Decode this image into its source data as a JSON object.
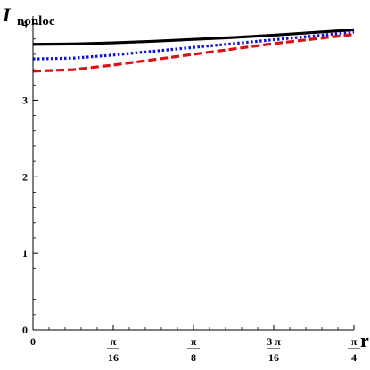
{
  "chart_data": {
    "type": "line",
    "title": "",
    "ylabel": {
      "main": "I",
      "sub": "nonloc"
    },
    "xlabel": "r",
    "xlim": [
      0,
      0.7853981634
    ],
    "ylim": [
      0,
      4.1
    ],
    "grid": false,
    "x_ticks": [
      {
        "value": 0,
        "numerator": "0",
        "denominator": ""
      },
      {
        "value": 0.1963495408,
        "numerator": "π",
        "denominator": "16"
      },
      {
        "value": 0.3926990817,
        "numerator": "π",
        "denominator": "8"
      },
      {
        "value": 0.5890486225,
        "numerator": "3 π",
        "denominator": "16"
      },
      {
        "value": 0.7853981634,
        "numerator": "π",
        "denominator": "4"
      }
    ],
    "y_ticks": [
      {
        "value": 0,
        "label": "0"
      },
      {
        "value": 1,
        "label": "1"
      },
      {
        "value": 2,
        "label": "2"
      },
      {
        "value": 3,
        "label": "3"
      },
      {
        "value": 4,
        "label": "4"
      }
    ],
    "series": [
      {
        "color": "#000000",
        "style": "solid",
        "x": [
          0,
          0.0982,
          0.1963,
          0.2945,
          0.3927,
          0.4909,
          0.589,
          0.6872,
          0.7854
        ],
        "y": [
          3.73,
          3.735,
          3.75,
          3.77,
          3.795,
          3.82,
          3.85,
          3.885,
          3.92
        ]
      },
      {
        "color": "#1010dd",
        "style": "dotted",
        "x": [
          0,
          0.0982,
          0.1963,
          0.2945,
          0.3927,
          0.4909,
          0.589,
          0.6872,
          0.7854
        ],
        "y": [
          3.54,
          3.55,
          3.59,
          3.64,
          3.69,
          3.74,
          3.79,
          3.84,
          3.89
        ]
      },
      {
        "color": "#dd1010",
        "style": "dashed",
        "x": [
          0,
          0.0982,
          0.1963,
          0.2945,
          0.3927,
          0.4909,
          0.589,
          0.6872,
          0.7854
        ],
        "y": [
          3.38,
          3.4,
          3.46,
          3.53,
          3.6,
          3.67,
          3.74,
          3.8,
          3.86
        ]
      }
    ]
  }
}
